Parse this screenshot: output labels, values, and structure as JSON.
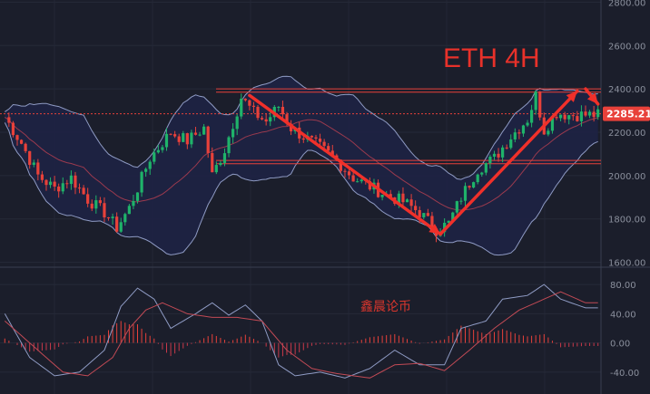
{
  "chart_data": [
    {
      "type": "candlestick",
      "title": "ETH  4H",
      "y_ticks": [
        1600.0,
        1800.0,
        2000.0,
        2200.0,
        2400.0,
        2600.0,
        2800.0
      ],
      "y_tick_labels": [
        "1600.00",
        "1800.00",
        "2000.00",
        "2200.00",
        "2400.00",
        "2600.00",
        "2800.00"
      ],
      "ylim": [
        1590,
        2810
      ],
      "last_price": 2285.21,
      "last_price_label": "2285.21",
      "indicators": [
        "Bollinger Bands",
        "moving average"
      ],
      "horizontal_levels": [
        2400,
        2385,
        2070,
        2055
      ],
      "path_points": [
        {
          "i": 0,
          "close": 2270
        },
        {
          "i": 4,
          "close": 2150
        },
        {
          "i": 8,
          "close": 2000
        },
        {
          "i": 12,
          "close": 1940
        },
        {
          "i": 16,
          "close": 1990
        },
        {
          "i": 20,
          "close": 1890
        },
        {
          "i": 24,
          "close": 1830
        },
        {
          "i": 27,
          "close": 1760
        },
        {
          "i": 30,
          "close": 1850
        },
        {
          "i": 35,
          "close": 2080
        },
        {
          "i": 40,
          "close": 2200
        },
        {
          "i": 44,
          "close": 2160
        },
        {
          "i": 48,
          "close": 2220
        },
        {
          "i": 50,
          "close": 2000
        },
        {
          "i": 53,
          "close": 2120
        },
        {
          "i": 57,
          "close": 2360
        },
        {
          "i": 60,
          "close": 2290
        },
        {
          "i": 63,
          "close": 2250
        },
        {
          "i": 66,
          "close": 2320
        },
        {
          "i": 69,
          "close": 2220
        },
        {
          "i": 72,
          "close": 2180
        },
        {
          "i": 76,
          "close": 2130
        },
        {
          "i": 80,
          "close": 2070
        },
        {
          "i": 84,
          "close": 1990
        },
        {
          "i": 88,
          "close": 1950
        },
        {
          "i": 92,
          "close": 1910
        },
        {
          "i": 96,
          "close": 1880
        },
        {
          "i": 100,
          "close": 1830
        },
        {
          "i": 104,
          "close": 1750
        },
        {
          "i": 107,
          "close": 1780
        },
        {
          "i": 110,
          "close": 1900
        },
        {
          "i": 114,
          "close": 2030
        },
        {
          "i": 118,
          "close": 2080
        },
        {
          "i": 122,
          "close": 2180
        },
        {
          "i": 126,
          "close": 2260
        },
        {
          "i": 128,
          "close": 2370
        },
        {
          "i": 130,
          "close": 2210
        },
        {
          "i": 133,
          "close": 2290
        },
        {
          "i": 136,
          "close": 2280
        }
      ],
      "arrows": [
        {
          "from": {
            "i": 59,
            "price": 2370
          },
          "to": {
            "i": 105,
            "price": 1730
          }
        },
        {
          "from": {
            "i": 105,
            "price": 1730
          },
          "to": {
            "i": 138,
            "price": 2390
          }
        },
        {
          "from": {
            "i": 140,
            "price": 2400
          },
          "to": {
            "i": 143,
            "price": 2330
          }
        }
      ]
    },
    {
      "type": "macd",
      "watermark": "鑫晨论币",
      "y_ticks": [
        80.0,
        40.0,
        0.0,
        -40.0
      ],
      "y_tick_labels": [
        "80.00",
        "40.00",
        "0.00",
        "-40.00"
      ],
      "ylim": [
        -70,
        100
      ],
      "macd_line": [
        {
          "i": 0,
          "v": 40
        },
        {
          "i": 6,
          "v": -20
        },
        {
          "i": 12,
          "v": -45
        },
        {
          "i": 18,
          "v": -40
        },
        {
          "i": 24,
          "v": -10
        },
        {
          "i": 28,
          "v": 50
        },
        {
          "i": 32,
          "v": 75
        },
        {
          "i": 36,
          "v": 60
        },
        {
          "i": 40,
          "v": 20
        },
        {
          "i": 46,
          "v": 40
        },
        {
          "i": 50,
          "v": 55
        },
        {
          "i": 54,
          "v": 38
        },
        {
          "i": 58,
          "v": 52
        },
        {
          "i": 62,
          "v": 30
        },
        {
          "i": 66,
          "v": -30
        },
        {
          "i": 70,
          "v": -45
        },
        {
          "i": 76,
          "v": -40
        },
        {
          "i": 82,
          "v": -48
        },
        {
          "i": 88,
          "v": -35
        },
        {
          "i": 94,
          "v": -10
        },
        {
          "i": 100,
          "v": -30
        },
        {
          "i": 106,
          "v": -30
        },
        {
          "i": 110,
          "v": 20
        },
        {
          "i": 116,
          "v": 30
        },
        {
          "i": 120,
          "v": 60
        },
        {
          "i": 126,
          "v": 65
        },
        {
          "i": 130,
          "v": 80
        },
        {
          "i": 134,
          "v": 60
        },
        {
          "i": 140,
          "v": 48
        }
      ],
      "signal_line": [
        {
          "i": 0,
          "v": 30
        },
        {
          "i": 8,
          "v": -10
        },
        {
          "i": 14,
          "v": -40
        },
        {
          "i": 20,
          "v": -45
        },
        {
          "i": 26,
          "v": -20
        },
        {
          "i": 30,
          "v": 20
        },
        {
          "i": 34,
          "v": 45
        },
        {
          "i": 38,
          "v": 55
        },
        {
          "i": 44,
          "v": 40
        },
        {
          "i": 50,
          "v": 35
        },
        {
          "i": 56,
          "v": 35
        },
        {
          "i": 62,
          "v": 30
        },
        {
          "i": 68,
          "v": -10
        },
        {
          "i": 74,
          "v": -35
        },
        {
          "i": 80,
          "v": -42
        },
        {
          "i": 88,
          "v": -48
        },
        {
          "i": 94,
          "v": -30
        },
        {
          "i": 100,
          "v": -28
        },
        {
          "i": 106,
          "v": -38
        },
        {
          "i": 112,
          "v": -10
        },
        {
          "i": 118,
          "v": 20
        },
        {
          "i": 124,
          "v": 45
        },
        {
          "i": 130,
          "v": 60
        },
        {
          "i": 134,
          "v": 70
        },
        {
          "i": 140,
          "v": 55
        }
      ]
    }
  ]
}
